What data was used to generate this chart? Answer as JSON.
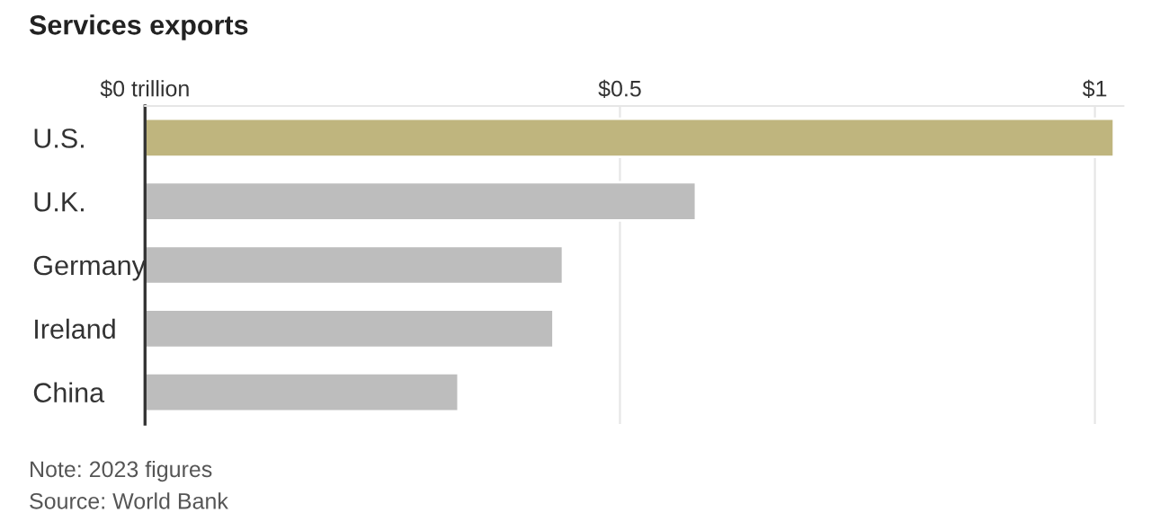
{
  "chart_data": {
    "type": "bar",
    "orientation": "horizontal",
    "title": "Services exports",
    "categories": [
      "U.S.",
      "U.K.",
      "Germany",
      "Ireland",
      "China"
    ],
    "values": [
      1.02,
      0.58,
      0.44,
      0.43,
      0.33
    ],
    "colors": [
      "#bfb57e",
      "#bdbdbd",
      "#bdbdbd",
      "#bdbdbd",
      "#bdbdbd"
    ],
    "xlim": [
      0,
      1.03
    ],
    "xticks": [
      {
        "value": 0,
        "label": "$0 trillion"
      },
      {
        "value": 0.5,
        "label": "$0.5"
      },
      {
        "value": 1,
        "label": "$1"
      }
    ],
    "grid": "x",
    "legend": false,
    "annotations": [
      "Note: 2023 figures",
      "Source: World Bank"
    ]
  }
}
